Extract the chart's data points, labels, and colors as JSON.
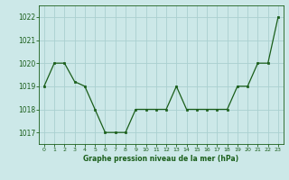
{
  "x": [
    0,
    1,
    2,
    3,
    4,
    5,
    6,
    7,
    8,
    9,
    10,
    11,
    12,
    13,
    14,
    15,
    16,
    17,
    18,
    19,
    20,
    21,
    22,
    23
  ],
  "y": [
    1019.0,
    1020.0,
    1020.0,
    1019.2,
    1019.0,
    1018.0,
    1017.0,
    1017.0,
    1017.0,
    1018.0,
    1018.0,
    1018.0,
    1018.0,
    1019.0,
    1018.0,
    1018.0,
    1018.0,
    1018.0,
    1018.0,
    1019.0,
    1019.0,
    1020.0,
    1020.0,
    1022.0
  ],
  "line_color": "#1a5e1a",
  "marker_color": "#1a5e1a",
  "bg_color": "#cce8e8",
  "grid_color": "#aad0d0",
  "xlabel": "Graphe pression niveau de la mer (hPa)",
  "xlabel_color": "#1a5e1a",
  "tick_color": "#1a5e1a",
  "axis_color": "#1a5e1a",
  "ylim_min": 1016.5,
  "ylim_max": 1022.5,
  "yticks": [
    1017,
    1018,
    1019,
    1020,
    1021,
    1022
  ],
  "xtick_labels": [
    "0",
    "1",
    "2",
    "3",
    "4",
    "5",
    "6",
    "7",
    "8",
    "9",
    "10",
    "11",
    "12",
    "13",
    "14",
    "15",
    "16",
    "17",
    "18",
    "19",
    "20",
    "21",
    "22",
    "23"
  ]
}
